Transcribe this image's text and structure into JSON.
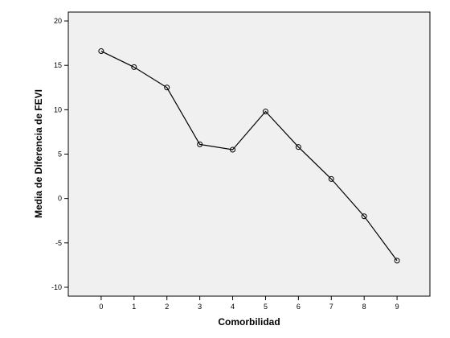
{
  "chart_data": {
    "type": "line",
    "xlabel": "Comorbilidad",
    "ylabel": "Media de Diferencia de FEVI",
    "x": [
      0,
      1,
      2,
      3,
      4,
      5,
      6,
      7,
      8,
      9
    ],
    "series": [
      {
        "values": [
          16.6,
          14.8,
          12.5,
          6.1,
          5.5,
          9.8,
          5.8,
          2.2,
          -2.0,
          -7.0
        ]
      }
    ],
    "xlim": [
      -1,
      10
    ],
    "ylim": [
      -11,
      21
    ],
    "x_ticks": [
      "0",
      "1",
      "2",
      "3",
      "4",
      "5",
      "6",
      "7",
      "8",
      "9"
    ],
    "y_ticks": [
      "-10",
      "-5",
      "0",
      "5",
      "10",
      "15",
      "20"
    ],
    "grid": false,
    "markers": "open circles",
    "colors": {
      "plot_background": "#f0f0f0",
      "line": "#000000"
    }
  }
}
